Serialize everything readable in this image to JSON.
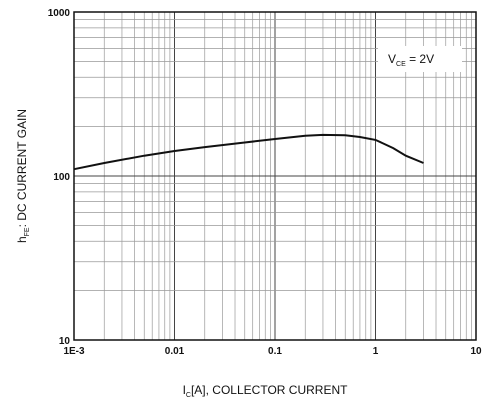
{
  "chart_data": {
    "type": "line",
    "title": "",
    "xlabel": {
      "main": "I",
      "sub": "C",
      "rest": "[A], COLLECTOR CURRENT"
    },
    "ylabel": {
      "main": "h",
      "sub": "FE",
      "rest": ": DC CURRENT GAIN"
    },
    "x_scale": "log",
    "y_scale": "log",
    "xlim": [
      0.001,
      10
    ],
    "ylim": [
      10,
      1000
    ],
    "x_ticks": [
      {
        "value": 0.001,
        "label": "1E-3"
      },
      {
        "value": 0.01,
        "label": "0.01"
      },
      {
        "value": 0.1,
        "label": "0.1"
      },
      {
        "value": 1,
        "label": "1"
      },
      {
        "value": 10,
        "label": "10"
      }
    ],
    "y_ticks": [
      {
        "value": 10,
        "label": "10"
      },
      {
        "value": 100,
        "label": "100"
      },
      {
        "value": 1000,
        "label": "1000"
      }
    ],
    "grid": true,
    "annotation": {
      "main": "V",
      "sub": "CE",
      "rest": " = 2V"
    },
    "series": [
      {
        "x": [
          0.001,
          0.002,
          0.005,
          0.01,
          0.02,
          0.05,
          0.1,
          0.2,
          0.3,
          0.5,
          0.7,
          1.0,
          1.5,
          2.0,
          3.0
        ],
        "y": [
          110,
          120,
          133,
          142,
          150,
          160,
          168,
          176,
          178,
          177,
          173,
          166,
          148,
          133,
          120
        ]
      }
    ]
  }
}
